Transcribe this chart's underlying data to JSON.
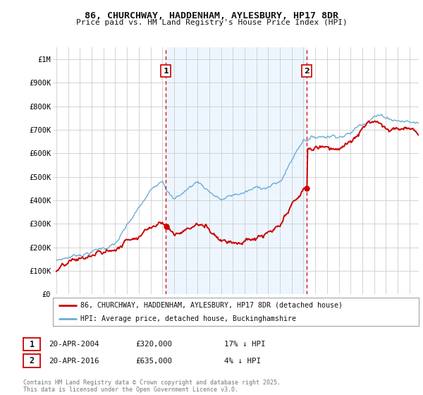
{
  "title": "86, CHURCHWAY, HADDENHAM, AYLESBURY, HP17 8DR",
  "subtitle": "Price paid vs. HM Land Registry's House Price Index (HPI)",
  "background_color": "#ffffff",
  "grid_color": "#cccccc",
  "hpi_color": "#6aaed6",
  "hpi_fill_color": "#ddeeff",
  "price_color": "#cc0000",
  "dashed_color": "#cc0000",
  "ylim": [
    0,
    1050000
  ],
  "yticks": [
    0,
    100000,
    200000,
    300000,
    400000,
    500000,
    600000,
    700000,
    800000,
    900000,
    1000000
  ],
  "ytick_labels": [
    "£0",
    "£100K",
    "£200K",
    "£300K",
    "£400K",
    "£500K",
    "£600K",
    "£700K",
    "£800K",
    "£900K",
    "£1M"
  ],
  "sale1_year": 2004.3,
  "sale1_price": 320000,
  "sale1_label": "1",
  "sale2_year": 2016.3,
  "sale2_price": 635000,
  "sale2_label": "2",
  "legend_line1": "86, CHURCHWAY, HADDENHAM, AYLESBURY, HP17 8DR (detached house)",
  "legend_line2": "HPI: Average price, detached house, Buckinghamshire",
  "note1_date": "20-APR-2004",
  "note1_price": "£320,000",
  "note1_hpi": "17% ↓ HPI",
  "note2_date": "20-APR-2016",
  "note2_price": "£635,000",
  "note2_hpi": "4% ↓ HPI",
  "footer": "Contains HM Land Registry data © Crown copyright and database right 2025.\nThis data is licensed under the Open Government Licence v3.0.",
  "xlim_start": 1994.7,
  "xlim_end": 2025.8
}
